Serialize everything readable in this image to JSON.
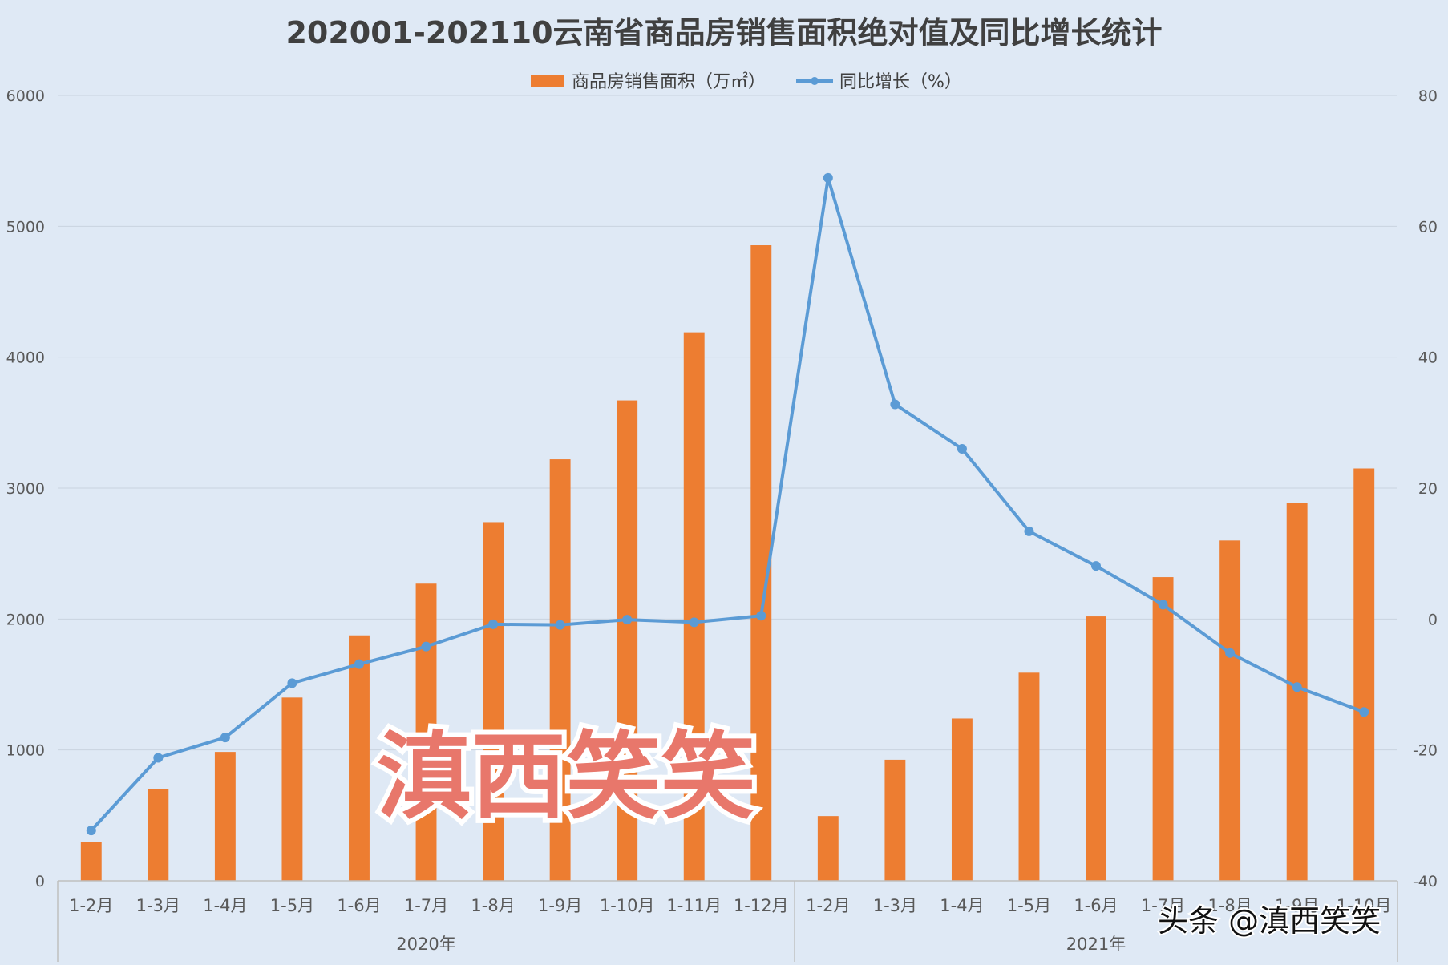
{
  "chart_data": {
    "type": "bar+line",
    "title": "202001-202110云南省商品房销售面积绝对值及同比增长统计",
    "legend": {
      "position": "top",
      "bar_label": "商品房销售面积（万㎡）",
      "line_label": "同比增长（%）"
    },
    "categories": [
      "1-2月",
      "1-3月",
      "1-4月",
      "1-5月",
      "1-6月",
      "1-7月",
      "1-8月",
      "1-9月",
      "1-10月",
      "1-11月",
      "1-12月",
      "1-2月",
      "1-3月",
      "1-4月",
      "1-5月",
      "1-6月",
      "1-7月",
      "1-8月",
      "1-9月",
      "1-10月"
    ],
    "groups": [
      {
        "label": "2020年",
        "count": 11
      },
      {
        "label": "2021年",
        "count": 9
      }
    ],
    "series": [
      {
        "name": "商品房销售面积（万㎡）",
        "axis": "left",
        "kind": "bar",
        "color": "#ed7d31",
        "values": [
          300,
          700,
          985,
          1400,
          1875,
          2270,
          2740,
          3220,
          3670,
          4190,
          4855,
          495,
          925,
          1240,
          1590,
          2020,
          2320,
          2600,
          2885,
          3150
        ]
      },
      {
        "name": "同比增长（%）",
        "axis": "right",
        "kind": "line",
        "color": "#5b9bd5",
        "values": [
          -32.3,
          -21.2,
          -18.1,
          -9.8,
          -6.9,
          -4.2,
          -0.8,
          -0.9,
          -0.1,
          -0.5,
          0.5,
          67.4,
          32.8,
          26.0,
          13.4,
          8.1,
          2.2,
          -5.2,
          -10.4,
          -14.2
        ]
      }
    ],
    "y_left": {
      "min": 0,
      "max": 6000,
      "ticks": [
        "0",
        "1000",
        "2000",
        "3000",
        "4000",
        "5000",
        "6000"
      ]
    },
    "y_right": {
      "min": -40,
      "max": 80,
      "ticks": [
        "-40",
        "-20",
        "0",
        "20",
        "40",
        "60",
        "80"
      ]
    },
    "grid": true
  },
  "watermark": {
    "center_text": "滇西笑笑",
    "corner_text": "头条 @滇西笑笑"
  }
}
